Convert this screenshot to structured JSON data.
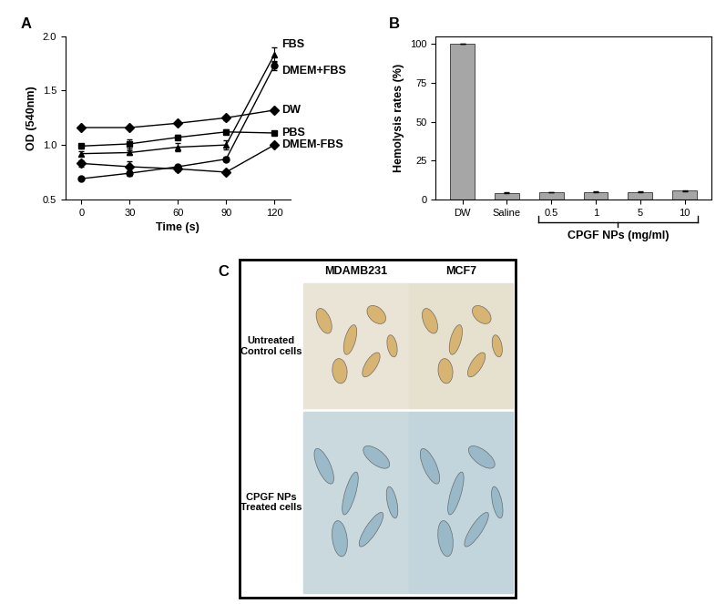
{
  "chart_data": [
    {
      "type": "line",
      "title": "A",
      "x_label": "Time (s)",
      "y_label": "OD (540nm)",
      "x": [
        0,
        30,
        60,
        90,
        120
      ],
      "xlim": [
        -10,
        130
      ],
      "xticks": [
        0,
        30,
        60,
        90,
        120
      ],
      "ylim": [
        0.5,
        2.0
      ],
      "yticks": [
        0.5,
        1.0,
        1.5,
        2.0
      ],
      "series": [
        {
          "name": "FBS",
          "color": "#000000",
          "marker": "triangle",
          "values": [
            0.92,
            0.93,
            0.98,
            1.0,
            1.83
          ],
          "errors": [
            0.02,
            0.02,
            0.04,
            0.04,
            0.07
          ]
        },
        {
          "name": "DMEM+FBS",
          "color": "#000000",
          "marker": "circle",
          "values": [
            0.69,
            0.74,
            0.8,
            0.87,
            1.73
          ],
          "errors": [
            0.01,
            0.02,
            0.02,
            0.02,
            0.04
          ]
        },
        {
          "name": "DW",
          "color": "#000000",
          "marker": "diamond",
          "values": [
            1.16,
            1.16,
            1.2,
            1.25,
            1.32
          ],
          "errors": [
            0.01,
            0.01,
            0.01,
            0.02,
            0.01
          ]
        },
        {
          "name": "PBS",
          "color": "#000000",
          "marker": "square",
          "values": [
            0.99,
            1.01,
            1.07,
            1.12,
            1.11
          ],
          "errors": [
            0.02,
            0.04,
            0.02,
            0.02,
            0.01
          ]
        },
        {
          "name": "DMEM-FBS",
          "color": "#000000",
          "marker": "diamond",
          "values": [
            0.83,
            0.8,
            0.78,
            0.75,
            1.0
          ],
          "errors": [
            0.03,
            0.05,
            0.02,
            0.02,
            0.01
          ]
        }
      ]
    },
    {
      "type": "bar",
      "title": "B",
      "y_label": "Hemolysis rates (%)",
      "categories": [
        "DW",
        "Saline",
        "0.5",
        "1",
        "5",
        "10"
      ],
      "values": [
        100,
        4.2,
        4.6,
        4.8,
        4.8,
        5.5
      ],
      "errors": [
        0,
        0.3,
        0.2,
        0.3,
        0.3,
        0.3
      ],
      "color": "#a6a6a6",
      "ylim": [
        0,
        105
      ],
      "yticks": [
        0,
        25,
        50,
        75,
        100
      ],
      "group": {
        "label": "CPGF NPs (mg/ml)",
        "categories": [
          "0.5",
          "1",
          "5",
          "10"
        ]
      }
    }
  ],
  "image_panel": {
    "title": "C",
    "columns": [
      "MDAMB231",
      "MCF7"
    ],
    "rows": [
      "Untreated\nControl cells",
      "CPGF NPs\nTreated cells"
    ]
  }
}
